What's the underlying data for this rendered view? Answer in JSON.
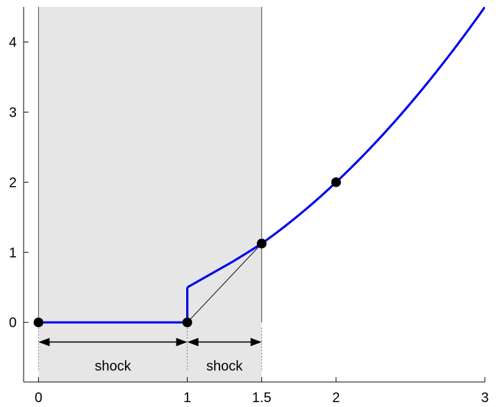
{
  "chart_data": {
    "type": "line",
    "title": "",
    "xlabel": "",
    "ylabel": "",
    "xlim": [
      -0.1,
      3
    ],
    "ylim": [
      -0.85,
      4.5
    ],
    "x_ticks": [
      {
        "value": 0,
        "label": "0"
      },
      {
        "value": 1,
        "label": "1"
      },
      {
        "value": 1.5,
        "label": "1.5"
      },
      {
        "value": 2,
        "label": "2"
      },
      {
        "value": 3,
        "label": "3"
      }
    ],
    "y_ticks": [
      {
        "value": 0,
        "label": "0"
      },
      {
        "value": 1,
        "label": "1"
      },
      {
        "value": 2,
        "label": "2"
      },
      {
        "value": 3,
        "label": "3"
      },
      {
        "value": 4,
        "label": "4"
      }
    ],
    "grid": false,
    "shaded_region": {
      "x": [
        0,
        1.5
      ],
      "color": "#e6e6e6"
    },
    "vertical_lines": [
      0,
      1.5
    ],
    "series": [
      {
        "color": "#0000ee",
        "segments": [
          {
            "x": [
              0,
              1
            ],
            "y": [
              0,
              0
            ]
          },
          {
            "x": [
              1,
              1
            ],
            "y": [
              0,
              0.5
            ]
          },
          {
            "x": [
              1,
              1.1,
              1.2,
              1.3,
              1.4,
              1.5
            ],
            "y": [
              0.5,
              0.62,
              0.74,
              0.86,
              0.99,
              1.125
            ]
          },
          {
            "x": [
              1.5,
              1.75,
              2,
              2.25,
              2.5,
              2.75,
              3
            ],
            "y": [
              1.125,
              1.531,
              2,
              2.531,
              3.125,
              3.781,
              4.5
            ]
          }
        ]
      }
    ],
    "thin_line": {
      "x": [
        1,
        1.5
      ],
      "y": [
        0,
        1.125
      ],
      "color": "#000000"
    },
    "points": [
      {
        "x": 0,
        "y": 0
      },
      {
        "x": 1,
        "y": 0
      },
      {
        "x": 1.5,
        "y": 1.125
      },
      {
        "x": 2,
        "y": 2
      }
    ],
    "annotations": [
      {
        "type": "span-arrow",
        "x": [
          0,
          1
        ],
        "y": -0.28,
        "label": "shock"
      },
      {
        "type": "span-arrow",
        "x": [
          1,
          1.5
        ],
        "y": -0.28,
        "label": "shock"
      }
    ]
  }
}
